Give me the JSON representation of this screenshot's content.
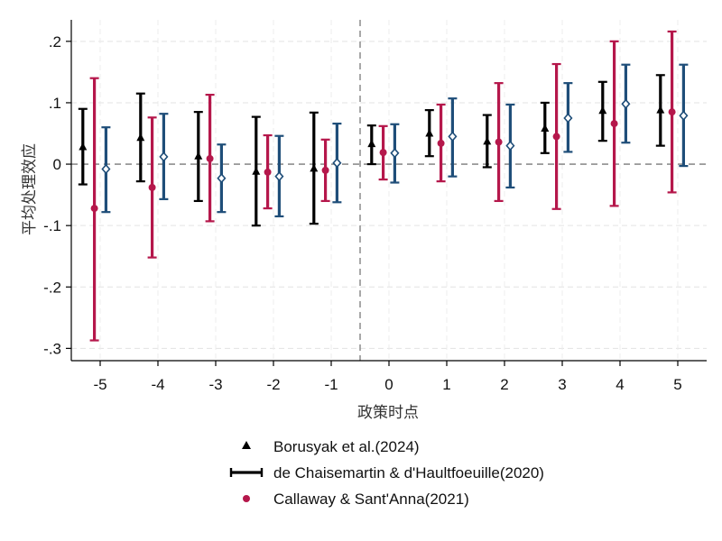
{
  "chart_data": {
    "type": "scatter",
    "xlabel": "政策时点",
    "ylabel": "平均处理效应",
    "x": [
      -5,
      -4,
      -3,
      -2,
      -1,
      0,
      1,
      2,
      3,
      4,
      5
    ],
    "xlim": [
      -5.5,
      5.5
    ],
    "ylim": [
      -0.32,
      0.235
    ],
    "x_ticks": [
      -5,
      -4,
      -3,
      -2,
      -1,
      0,
      1,
      2,
      3,
      4,
      5
    ],
    "x_tick_labels": [
      "-5",
      "-4",
      "-3",
      "-2",
      "-1",
      "0",
      "1",
      "2",
      "3",
      "4",
      "5"
    ],
    "y_ticks": [
      0.2,
      0.1,
      0,
      -0.1,
      -0.2,
      -0.3
    ],
    "y_tick_labels": [
      ".2",
      ".1",
      "0",
      "-.1",
      "-.2",
      "-.3"
    ],
    "grid": true,
    "reference_lines": {
      "horizontal_y": 0,
      "vertical_x": -0.5
    },
    "legend_position": "bottom",
    "series": [
      {
        "name": "Borusyak et al.(2024)",
        "marker": "triangle",
        "color": "#000000",
        "offset": -0.3,
        "estimate": [
          0.028,
          0.043,
          0.013,
          -0.012,
          -0.007,
          0.033,
          0.05,
          0.037,
          0.058,
          0.087,
          0.088
        ],
        "lower": [
          -0.033,
          -0.028,
          -0.06,
          -0.1,
          -0.097,
          0.0,
          0.013,
          -0.005,
          0.018,
          0.038,
          0.03
        ],
        "upper": [
          0.09,
          0.115,
          0.085,
          0.077,
          0.084,
          0.063,
          0.088,
          0.08,
          0.1,
          0.134,
          0.145
        ]
      },
      {
        "name": "de Chaisemartin & d'Haultfoeuille(2020)",
        "marker": "diamond",
        "color": "#1f4e79",
        "offset": 0.1,
        "estimate": [
          -0.008,
          0.012,
          -0.023,
          -0.02,
          0.002,
          0.018,
          0.045,
          0.03,
          0.075,
          0.098,
          0.079
        ],
        "lower": [
          -0.078,
          -0.057,
          -0.078,
          -0.085,
          -0.062,
          -0.03,
          -0.02,
          -0.038,
          0.02,
          0.035,
          -0.003
        ],
        "upper": [
          0.06,
          0.082,
          0.032,
          0.046,
          0.066,
          0.065,
          0.107,
          0.097,
          0.132,
          0.162,
          0.162
        ]
      },
      {
        "name": "Callaway & Sant'Anna(2021)",
        "marker": "circle",
        "color": "#b5174b",
        "offset": -0.1,
        "estimate": [
          -0.072,
          -0.038,
          0.009,
          -0.013,
          -0.01,
          0.019,
          0.034,
          0.036,
          0.045,
          0.066,
          0.085
        ],
        "lower": [
          -0.287,
          -0.152,
          -0.093,
          -0.072,
          -0.06,
          -0.025,
          -0.028,
          -0.06,
          -0.073,
          -0.068,
          -0.046
        ],
        "upper": [
          0.14,
          0.076,
          0.113,
          0.047,
          0.04,
          0.062,
          0.097,
          0.132,
          0.163,
          0.2,
          0.216
        ]
      }
    ],
    "legend": [
      {
        "label": "Borusyak et al.(2024)",
        "symbol": "triangle",
        "color": "#000000"
      },
      {
        "label": "de Chaisemartin & d'Haultfoeuille(2020)",
        "symbol": "capped-line",
        "color": "#000000"
      },
      {
        "label": "Callaway & Sant'Anna(2021)",
        "symbol": "circle",
        "color": "#b5174b"
      }
    ]
  }
}
